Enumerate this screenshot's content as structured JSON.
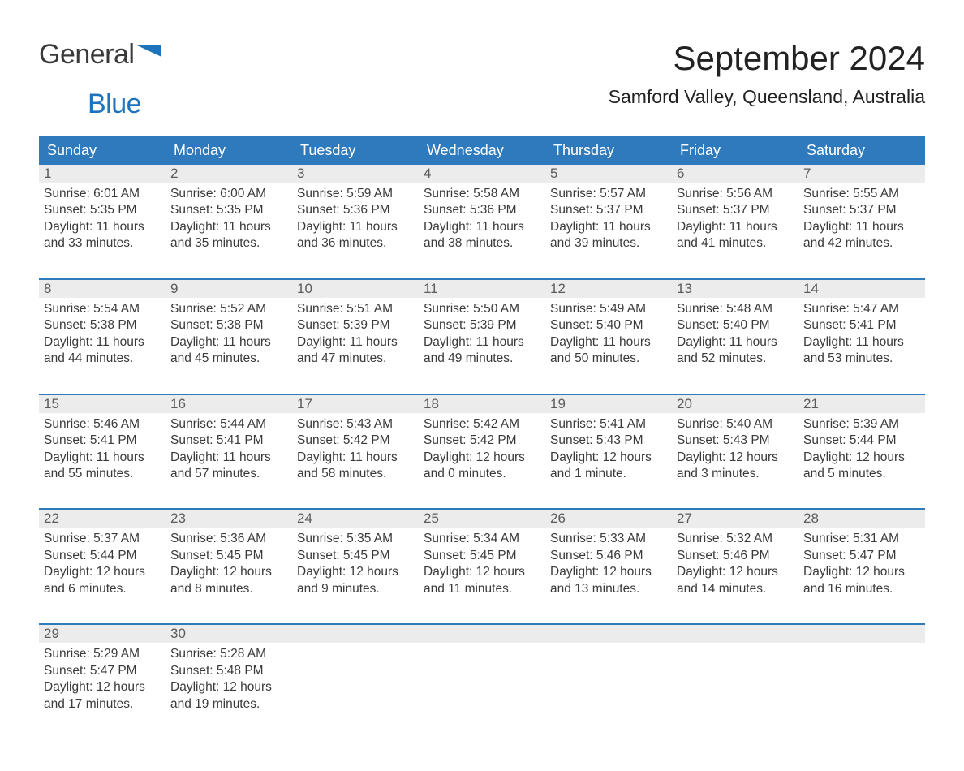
{
  "colors": {
    "header_bg": "#2f79bd",
    "header_text": "#ffffff",
    "week_border": "#2f79bd",
    "daynum_bg": "#ececec",
    "daynum_text": "#5b5b5b",
    "body_text": "#3a3a3a",
    "logo_blue": "#1f73bd",
    "page_bg": "#ffffff"
  },
  "logo": {
    "part1": "General",
    "part2": "Blue"
  },
  "title": "September 2024",
  "location": "Samford Valley, Queensland, Australia",
  "weekdays": [
    "Sunday",
    "Monday",
    "Tuesday",
    "Wednesday",
    "Thursday",
    "Friday",
    "Saturday"
  ],
  "weeks": [
    [
      {
        "num": "1",
        "sunrise": "Sunrise: 6:01 AM",
        "sunset": "Sunset: 5:35 PM",
        "day1": "Daylight: 11 hours",
        "day2": "and 33 minutes."
      },
      {
        "num": "2",
        "sunrise": "Sunrise: 6:00 AM",
        "sunset": "Sunset: 5:35 PM",
        "day1": "Daylight: 11 hours",
        "day2": "and 35 minutes."
      },
      {
        "num": "3",
        "sunrise": "Sunrise: 5:59 AM",
        "sunset": "Sunset: 5:36 PM",
        "day1": "Daylight: 11 hours",
        "day2": "and 36 minutes."
      },
      {
        "num": "4",
        "sunrise": "Sunrise: 5:58 AM",
        "sunset": "Sunset: 5:36 PM",
        "day1": "Daylight: 11 hours",
        "day2": "and 38 minutes."
      },
      {
        "num": "5",
        "sunrise": "Sunrise: 5:57 AM",
        "sunset": "Sunset: 5:37 PM",
        "day1": "Daylight: 11 hours",
        "day2": "and 39 minutes."
      },
      {
        "num": "6",
        "sunrise": "Sunrise: 5:56 AM",
        "sunset": "Sunset: 5:37 PM",
        "day1": "Daylight: 11 hours",
        "day2": "and 41 minutes."
      },
      {
        "num": "7",
        "sunrise": "Sunrise: 5:55 AM",
        "sunset": "Sunset: 5:37 PM",
        "day1": "Daylight: 11 hours",
        "day2": "and 42 minutes."
      }
    ],
    [
      {
        "num": "8",
        "sunrise": "Sunrise: 5:54 AM",
        "sunset": "Sunset: 5:38 PM",
        "day1": "Daylight: 11 hours",
        "day2": "and 44 minutes."
      },
      {
        "num": "9",
        "sunrise": "Sunrise: 5:52 AM",
        "sunset": "Sunset: 5:38 PM",
        "day1": "Daylight: 11 hours",
        "day2": "and 45 minutes."
      },
      {
        "num": "10",
        "sunrise": "Sunrise: 5:51 AM",
        "sunset": "Sunset: 5:39 PM",
        "day1": "Daylight: 11 hours",
        "day2": "and 47 minutes."
      },
      {
        "num": "11",
        "sunrise": "Sunrise: 5:50 AM",
        "sunset": "Sunset: 5:39 PM",
        "day1": "Daylight: 11 hours",
        "day2": "and 49 minutes."
      },
      {
        "num": "12",
        "sunrise": "Sunrise: 5:49 AM",
        "sunset": "Sunset: 5:40 PM",
        "day1": "Daylight: 11 hours",
        "day2": "and 50 minutes."
      },
      {
        "num": "13",
        "sunrise": "Sunrise: 5:48 AM",
        "sunset": "Sunset: 5:40 PM",
        "day1": "Daylight: 11 hours",
        "day2": "and 52 minutes."
      },
      {
        "num": "14",
        "sunrise": "Sunrise: 5:47 AM",
        "sunset": "Sunset: 5:41 PM",
        "day1": "Daylight: 11 hours",
        "day2": "and 53 minutes."
      }
    ],
    [
      {
        "num": "15",
        "sunrise": "Sunrise: 5:46 AM",
        "sunset": "Sunset: 5:41 PM",
        "day1": "Daylight: 11 hours",
        "day2": "and 55 minutes."
      },
      {
        "num": "16",
        "sunrise": "Sunrise: 5:44 AM",
        "sunset": "Sunset: 5:41 PM",
        "day1": "Daylight: 11 hours",
        "day2": "and 57 minutes."
      },
      {
        "num": "17",
        "sunrise": "Sunrise: 5:43 AM",
        "sunset": "Sunset: 5:42 PM",
        "day1": "Daylight: 11 hours",
        "day2": "and 58 minutes."
      },
      {
        "num": "18",
        "sunrise": "Sunrise: 5:42 AM",
        "sunset": "Sunset: 5:42 PM",
        "day1": "Daylight: 12 hours",
        "day2": "and 0 minutes."
      },
      {
        "num": "19",
        "sunrise": "Sunrise: 5:41 AM",
        "sunset": "Sunset: 5:43 PM",
        "day1": "Daylight: 12 hours",
        "day2": "and 1 minute."
      },
      {
        "num": "20",
        "sunrise": "Sunrise: 5:40 AM",
        "sunset": "Sunset: 5:43 PM",
        "day1": "Daylight: 12 hours",
        "day2": "and 3 minutes."
      },
      {
        "num": "21",
        "sunrise": "Sunrise: 5:39 AM",
        "sunset": "Sunset: 5:44 PM",
        "day1": "Daylight: 12 hours",
        "day2": "and 5 minutes."
      }
    ],
    [
      {
        "num": "22",
        "sunrise": "Sunrise: 5:37 AM",
        "sunset": "Sunset: 5:44 PM",
        "day1": "Daylight: 12 hours",
        "day2": "and 6 minutes."
      },
      {
        "num": "23",
        "sunrise": "Sunrise: 5:36 AM",
        "sunset": "Sunset: 5:45 PM",
        "day1": "Daylight: 12 hours",
        "day2": "and 8 minutes."
      },
      {
        "num": "24",
        "sunrise": "Sunrise: 5:35 AM",
        "sunset": "Sunset: 5:45 PM",
        "day1": "Daylight: 12 hours",
        "day2": "and 9 minutes."
      },
      {
        "num": "25",
        "sunrise": "Sunrise: 5:34 AM",
        "sunset": "Sunset: 5:45 PM",
        "day1": "Daylight: 12 hours",
        "day2": "and 11 minutes."
      },
      {
        "num": "26",
        "sunrise": "Sunrise: 5:33 AM",
        "sunset": "Sunset: 5:46 PM",
        "day1": "Daylight: 12 hours",
        "day2": "and 13 minutes."
      },
      {
        "num": "27",
        "sunrise": "Sunrise: 5:32 AM",
        "sunset": "Sunset: 5:46 PM",
        "day1": "Daylight: 12 hours",
        "day2": "and 14 minutes."
      },
      {
        "num": "28",
        "sunrise": "Sunrise: 5:31 AM",
        "sunset": "Sunset: 5:47 PM",
        "day1": "Daylight: 12 hours",
        "day2": "and 16 minutes."
      }
    ],
    [
      {
        "num": "29",
        "sunrise": "Sunrise: 5:29 AM",
        "sunset": "Sunset: 5:47 PM",
        "day1": "Daylight: 12 hours",
        "day2": "and 17 minutes."
      },
      {
        "num": "30",
        "sunrise": "Sunrise: 5:28 AM",
        "sunset": "Sunset: 5:48 PM",
        "day1": "Daylight: 12 hours",
        "day2": "and 19 minutes."
      },
      {
        "num": "",
        "sunrise": "",
        "sunset": "",
        "day1": "",
        "day2": ""
      },
      {
        "num": "",
        "sunrise": "",
        "sunset": "",
        "day1": "",
        "day2": ""
      },
      {
        "num": "",
        "sunrise": "",
        "sunset": "",
        "day1": "",
        "day2": ""
      },
      {
        "num": "",
        "sunrise": "",
        "sunset": "",
        "day1": "",
        "day2": ""
      },
      {
        "num": "",
        "sunrise": "",
        "sunset": "",
        "day1": "",
        "day2": ""
      }
    ]
  ]
}
